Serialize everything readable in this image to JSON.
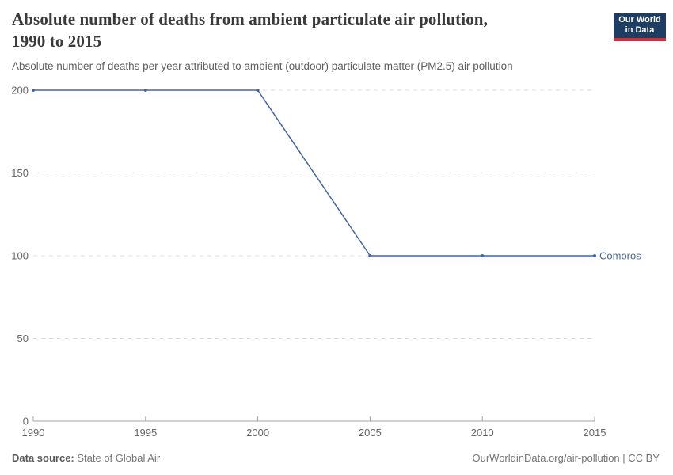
{
  "header": {
    "title": "Absolute number of deaths from ambient particulate air pollution,\n1990 to 2015",
    "subtitle": "Absolute number of deaths per year attributed to ambient (outdoor) particulate matter (PM2.5) air pollution",
    "logo": {
      "line1": "Our World",
      "line2": "in Data",
      "bg_color": "#1d3d63",
      "accent_color": "#cf2e41"
    }
  },
  "chart_data": {
    "type": "line",
    "title": "Absolute number of deaths from ambient particulate air pollution, 1990 to 2015",
    "x": [
      1990,
      1995,
      2000,
      2005,
      2010,
      2015
    ],
    "series": [
      {
        "name": "Comoros",
        "values": [
          200,
          200,
          200,
          100,
          100,
          100
        ],
        "color": "#4165a5",
        "label_color": "#4c6a9c"
      }
    ],
    "xlim": [
      1990,
      2015
    ],
    "ylim": [
      0,
      200
    ],
    "x_ticks": [
      1990,
      1995,
      2000,
      2005,
      2010,
      2015
    ],
    "y_ticks": [
      0,
      50,
      100,
      150,
      200
    ],
    "grid": "horizontal dashed",
    "gridline_color": "#dcdcdc",
    "axis_color": "#a5a5a5",
    "tick_label_color": "#666666",
    "legend_position": "end-of-line label"
  },
  "footer": {
    "source_label": "Data source:",
    "source_value": " State of Global Air",
    "credit": "OurWorldinData.org/air-pollution | CC BY"
  }
}
